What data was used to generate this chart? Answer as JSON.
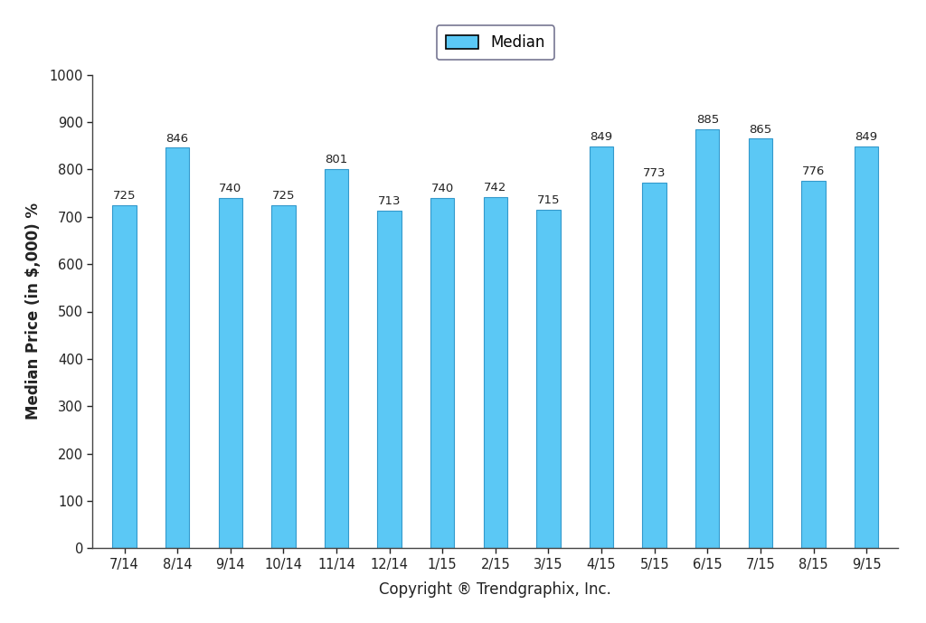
{
  "categories": [
    "7/14",
    "8/14",
    "9/14",
    "10/14",
    "11/14",
    "12/14",
    "1/15",
    "2/15",
    "3/15",
    "4/15",
    "5/15",
    "6/15",
    "7/15",
    "8/15",
    "9/15"
  ],
  "values": [
    725,
    846,
    740,
    725,
    801,
    713,
    740,
    742,
    715,
    849,
    773,
    885,
    865,
    776,
    849
  ],
  "bar_color": "#5BC8F5",
  "bar_edge_color": "#3399CC",
  "ylim": [
    0,
    1000
  ],
  "yticks": [
    0,
    100,
    200,
    300,
    400,
    500,
    600,
    700,
    800,
    900,
    1000
  ],
  "ylabel": "Median Price (in $,000) %",
  "xlabel": "Copyright ® Trendgraphix, Inc.",
  "legend_label": "Median",
  "background_color": "#ffffff",
  "label_fontsize": 9.5,
  "axis_label_fontsize": 12,
  "tick_fontsize": 10.5,
  "legend_fontsize": 12,
  "bar_width": 0.45
}
